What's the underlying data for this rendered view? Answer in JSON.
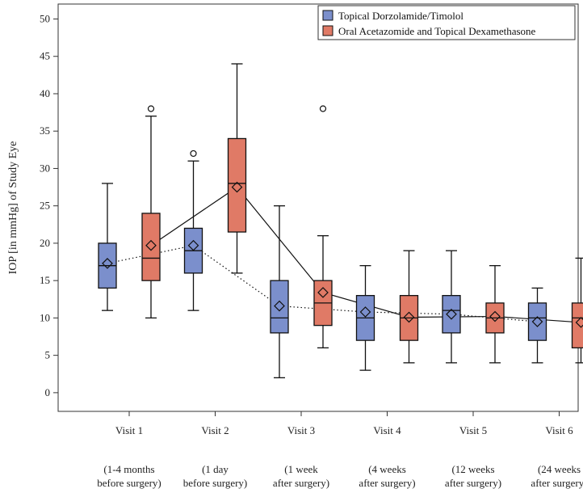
{
  "chart_data": {
    "type": "box",
    "ylabel": "IOP [in mmHg] of Study Eye",
    "ylim": [
      -2.5,
      52
    ],
    "yticks": [
      0,
      5,
      10,
      15,
      20,
      25,
      30,
      35,
      40,
      45,
      50
    ],
    "categories": [
      {
        "label": "Visit 1",
        "sub1": "(1-4 months",
        "sub2": "before surgery)"
      },
      {
        "label": "Visit 2",
        "sub1": "(1 day",
        "sub2": "before surgery)"
      },
      {
        "label": "Visit 3",
        "sub1": "(1 week",
        "sub2": "after surgery)"
      },
      {
        "label": "Visit 4",
        "sub1": "(4 weeks",
        "sub2": "after surgery)"
      },
      {
        "label": "Visit 5",
        "sub1": "(12 weeks",
        "sub2": "after surgery)"
      },
      {
        "label": "Visit 6",
        "sub1": "(24 weeks",
        "sub2": "after surgery)"
      }
    ],
    "series": [
      {
        "name": "Topical Dorzolamide/Timolol",
        "color": "#7b8fcc",
        "mean_line_style": "dotted",
        "boxes": [
          {
            "min": 11,
            "q1": 14,
            "median": 17,
            "q3": 20,
            "max": 28,
            "mean": 17.3,
            "outliers": []
          },
          {
            "min": 11,
            "q1": 16,
            "median": 19,
            "q3": 22,
            "max": 31,
            "mean": 19.7,
            "outliers": [
              32
            ]
          },
          {
            "min": 2,
            "q1": 8,
            "median": 10,
            "q3": 15,
            "max": 25,
            "mean": 11.6,
            "outliers": []
          },
          {
            "min": 3,
            "q1": 7,
            "median": 10,
            "q3": 13,
            "max": 17,
            "mean": 10.8,
            "outliers": []
          },
          {
            "min": 4,
            "q1": 8,
            "median": 11,
            "q3": 13,
            "max": 19,
            "mean": 10.5,
            "outliers": []
          },
          {
            "min": 4,
            "q1": 7,
            "median": 10,
            "q3": 12,
            "max": 14,
            "mean": 9.5,
            "outliers": []
          }
        ]
      },
      {
        "name": "Oral Acetazomide and Topical Dexamethasone",
        "color": "#e07a66",
        "mean_line_style": "solid",
        "boxes": [
          {
            "min": 10,
            "q1": 15,
            "median": 18,
            "q3": 24,
            "max": 37,
            "mean": 19.7,
            "outliers": [
              38
            ]
          },
          {
            "min": 16,
            "q1": 21.5,
            "median": 28,
            "q3": 34,
            "max": 44,
            "mean": 27.5,
            "outliers": []
          },
          {
            "min": 6,
            "q1": 9,
            "median": 12,
            "q3": 15,
            "max": 21,
            "mean": 13.4,
            "outliers": [
              38
            ]
          },
          {
            "min": 4,
            "q1": 7,
            "median": 10,
            "q3": 13,
            "max": 19,
            "mean": 10.1,
            "outliers": []
          },
          {
            "min": 4,
            "q1": 8,
            "median": 10,
            "q3": 12,
            "max": 17,
            "mean": 10.2,
            "outliers": []
          },
          {
            "min": 4,
            "q1": 6,
            "median": 10,
            "q3": 12,
            "max": 18,
            "mean": 9.4,
            "outliers": []
          }
        ]
      }
    ]
  }
}
